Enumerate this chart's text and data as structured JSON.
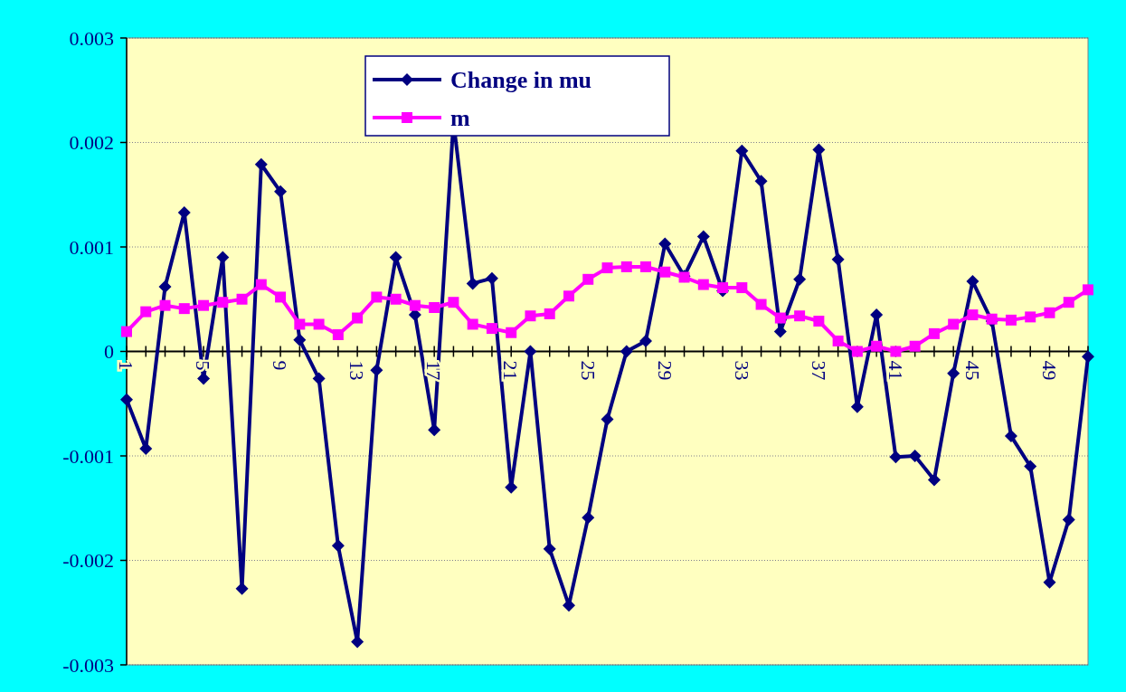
{
  "chart_data": {
    "type": "line",
    "categories": [
      "1",
      null,
      null,
      null,
      "5",
      null,
      null,
      null,
      "9",
      null,
      null,
      null,
      "13",
      null,
      null,
      null,
      "17",
      null,
      null,
      null,
      "21",
      null,
      null,
      null,
      "25",
      null,
      null,
      null,
      "29",
      null,
      null,
      null,
      "33",
      null,
      null,
      null,
      "37",
      null,
      null,
      null,
      "41",
      null,
      null,
      null,
      "45",
      null,
      null,
      null,
      "49",
      null,
      null
    ],
    "series": [
      {
        "name": "Change in mu",
        "color": "#000080",
        "marker": "diamond",
        "values": [
          -0.00046,
          -0.00093,
          0.00062,
          0.00133,
          -0.00026,
          0.0009,
          -0.00227,
          0.00179,
          0.00153,
          0.00011,
          -0.00026,
          -0.00186,
          -0.00278,
          -0.00018,
          0.0009,
          0.00035,
          -0.00075,
          0.0022,
          0.00065,
          0.0007,
          -0.0013,
          0,
          -0.00189,
          -0.00243,
          -0.00159,
          -0.00065,
          0,
          0.0001,
          0.00103,
          0.00072,
          0.0011,
          0.00058,
          0.00192,
          0.00163,
          0.00019,
          0.00069,
          0.00193,
          0.00088,
          -0.00053,
          0.00035,
          -0.00101,
          -0.001,
          -0.00123,
          -0.00021,
          0.00067,
          0.00029,
          -0.00081,
          -0.0011,
          -0.00221,
          -0.00161,
          -5e-05
        ]
      },
      {
        "name": "m",
        "color": "#ff00ff",
        "marker": "square",
        "values": [
          0.00019,
          0.00038,
          0.00044,
          0.00041,
          0.00044,
          0.00047,
          0.0005,
          0.00064,
          0.00052,
          0.00026,
          0.00026,
          0.00016,
          0.00032,
          0.00052,
          0.0005,
          0.00044,
          0.00042,
          0.00047,
          0.00026,
          0.00022,
          0.00018,
          0.00034,
          0.00036,
          0.00053,
          0.00069,
          0.0008,
          0.00081,
          0.00081,
          0.00076,
          0.00071,
          0.00064,
          0.00061,
          0.00061,
          0.00045,
          0.00032,
          0.00034,
          0.00029,
          0.0001,
          0,
          5e-05,
          0,
          5e-05,
          0.00017,
          0.00026,
          0.00035,
          0.00031,
          0.0003,
          0.00033,
          0.00037,
          0.00047,
          0.00059
        ]
      }
    ],
    "ylim": [
      -0.003,
      0.003
    ],
    "yticks": [
      -0.003,
      -0.002,
      -0.001,
      0,
      0.001,
      0.002,
      0.003
    ],
    "grid": "y",
    "legend": "top",
    "line_style": "solid"
  }
}
